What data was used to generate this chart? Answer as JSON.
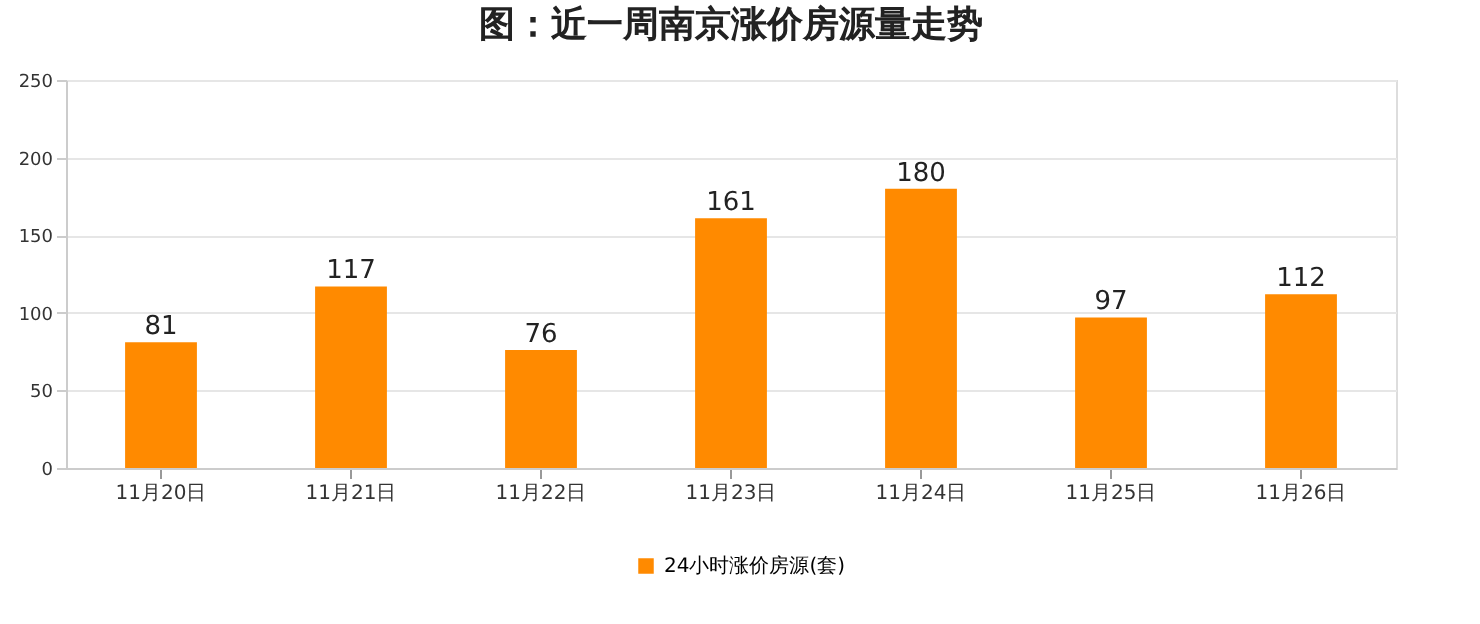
{
  "chart_data": {
    "type": "bar",
    "title": "图：近一周南京涨价房源量走势",
    "categories": [
      "11月20日",
      "11月21日",
      "11月22日",
      "11月23日",
      "11月24日",
      "11月25日",
      "11月26日"
    ],
    "series": [
      {
        "name": "24小时涨价房源(套)",
        "color": "#ff8a00",
        "values": [
          81,
          117,
          76,
          161,
          180,
          97,
          112
        ]
      }
    ],
    "ylim": [
      0,
      250
    ],
    "yticks": [
      0,
      50,
      100,
      150,
      200,
      250
    ],
    "grid": "y",
    "legend": "bottom",
    "data_labels": true
  }
}
